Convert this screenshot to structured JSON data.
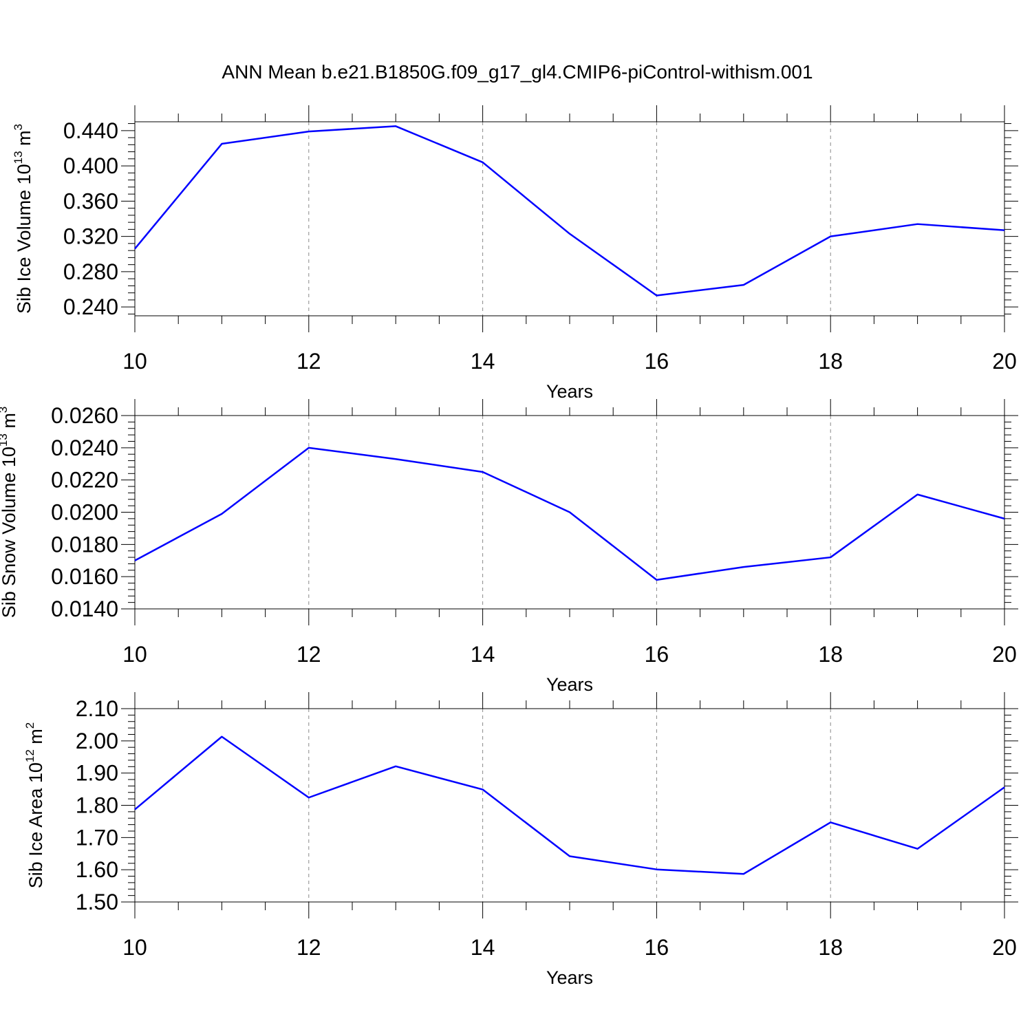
{
  "title": "ANN Mean b.e21.B1850G.f09_g17_gl4.CMIP6-piControl-withism.001",
  "chart_data": [
    {
      "type": "line",
      "ylabel": {
        "main": "Sib Ice Volume 10",
        "exp": "13",
        "unit": " m",
        "unit_exp": "3"
      },
      "xlabel": "Years",
      "x": [
        10,
        11,
        12,
        13,
        14,
        15,
        16,
        17,
        18,
        19,
        20
      ],
      "xlim": [
        10,
        20
      ],
      "ylim": [
        0.23,
        0.45
      ],
      "x_ticks": [
        "10",
        "12",
        "14",
        "16",
        "18",
        "20"
      ],
      "y_ticks": [
        "0.240",
        "0.280",
        "0.320",
        "0.360",
        "0.400",
        "0.440"
      ],
      "series": [
        {
          "values": [
            0.306,
            0.425,
            0.439,
            0.445,
            0.404,
            0.323,
            0.253,
            0.265,
            0.32,
            0.334,
            0.327
          ],
          "color": "#0000ff"
        }
      ],
      "grid": "x-dashed"
    },
    {
      "type": "line",
      "ylabel": {
        "main": "Sib Snow Volume 10",
        "exp": "13",
        "unit": " m",
        "unit_exp": "3"
      },
      "xlabel": "Years",
      "x": [
        10,
        11,
        12,
        13,
        14,
        15,
        16,
        17,
        18,
        19,
        20
      ],
      "xlim": [
        10,
        20
      ],
      "ylim": [
        0.014,
        0.026
      ],
      "x_ticks": [
        "10",
        "12",
        "14",
        "16",
        "18",
        "20"
      ],
      "y_ticks": [
        "0.0140",
        "0.0160",
        "0.0180",
        "0.0200",
        "0.0220",
        "0.0240",
        "0.0260"
      ],
      "series": [
        {
          "values": [
            0.017,
            0.0199,
            0.024,
            0.0233,
            0.0225,
            0.02,
            0.0158,
            0.0166,
            0.0172,
            0.0211,
            0.0196
          ],
          "color": "#0000ff"
        }
      ],
      "grid": "x-dashed"
    },
    {
      "type": "line",
      "ylabel": {
        "main": "Sib Ice Area 10",
        "exp": "12",
        "unit": " m",
        "unit_exp": "2"
      },
      "xlabel": "Years",
      "x": [
        10,
        11,
        12,
        13,
        14,
        15,
        16,
        17,
        18,
        19,
        20
      ],
      "xlim": [
        10,
        20
      ],
      "ylim": [
        1.5,
        2.1
      ],
      "x_ticks": [
        "10",
        "12",
        "14",
        "16",
        "18",
        "20"
      ],
      "y_ticks": [
        "1.50",
        "1.60",
        "1.70",
        "1.80",
        "1.90",
        "2.00",
        "2.10"
      ],
      "series": [
        {
          "values": [
            1.787,
            2.013,
            1.824,
            1.921,
            1.849,
            1.642,
            1.601,
            1.587,
            1.747,
            1.665,
            1.856
          ],
          "color": "#0000ff"
        }
      ],
      "grid": "x-dashed"
    }
  ]
}
